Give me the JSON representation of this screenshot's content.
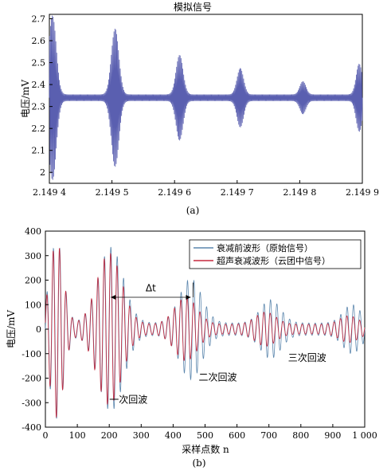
{
  "chart_data": [
    {
      "type": "line",
      "title": "模拟信号",
      "ylabel": "电压/mV",
      "xlabel": "",
      "caption": "(a)",
      "xlim": [
        2.1494,
        2.1499
      ],
      "ylim": [
        1.95,
        2.72
      ],
      "x_tick_labels": [
        "2.149 4",
        "2.149 5",
        "2.149 6",
        "2.149 7",
        "2.149 8",
        "2.149 9"
      ],
      "x_ticks": [
        2.1494,
        2.1495,
        2.1496,
        2.1497,
        2.1498,
        2.1499
      ],
      "y_tick_labels": [
        "2",
        "2.1",
        "2.2",
        "2.3",
        "2.4",
        "2.5",
        "2.6",
        "2.7"
      ],
      "y_ticks": [
        2.0,
        2.1,
        2.2,
        2.3,
        2.4,
        2.5,
        2.6,
        2.7
      ],
      "baseline": 2.34,
      "series": [
        {
          "color": "#5a5fb0",
          "bursts": [
            {
              "center": 2.149405,
              "width": 8.5e-06,
              "amplitude": 0.36
            },
            {
              "center": 2.149505,
              "width": 8.5e-06,
              "amplitude": 0.3
            },
            {
              "center": 2.149608,
              "width": 8e-06,
              "amplitude": 0.18
            },
            {
              "center": 2.149705,
              "width": 7.5e-06,
              "amplitude": 0.12
            },
            {
              "center": 2.149805,
              "width": 7e-06,
              "amplitude": 0.06
            },
            {
              "center": 2.149895,
              "width": 7e-06,
              "amplitude": 0.14
            }
          ],
          "background_amplitude": 0.015,
          "cycles_per_x_unit": 700000
        }
      ],
      "grid": false
    },
    {
      "type": "line",
      "title": "",
      "xlabel": "采样点数 n",
      "ylabel": "电压/mV",
      "caption": "(b)",
      "xlim": [
        0,
        1000
      ],
      "ylim": [
        -400,
        400
      ],
      "x_tick_labels": [
        "0",
        "100",
        "200",
        "300",
        "400",
        "500",
        "600",
        "700",
        "800",
        "900",
        "1 000"
      ],
      "x_ticks": [
        0,
        100,
        200,
        300,
        400,
        500,
        600,
        700,
        800,
        900,
        1000
      ],
      "y_tick_labels": [
        "-400",
        "-300",
        "-200",
        "-100",
        "0",
        "100",
        "200",
        "300",
        "400"
      ],
      "y_ticks": [
        -400,
        -300,
        -200,
        -100,
        0,
        100,
        200,
        300,
        400
      ],
      "legend": {
        "placement": "top-right"
      },
      "series": [
        {
          "name": "衰减前波形（原始信号）",
          "color": "#5b86ad",
          "bursts": [
            {
              "center": 35,
              "width": 30,
              "amplitude": 340
            },
            {
              "center": 205,
              "width": 55,
              "amplitude": 310
            },
            {
              "center": 455,
              "width": 50,
              "amplitude": 180
            },
            {
              "center": 705,
              "width": 45,
              "amplitude": 95
            },
            {
              "center": 960,
              "width": 40,
              "amplitude": 75
            }
          ],
          "background_amplitude": 25,
          "period": 20
        },
        {
          "name": "超声衰减波形（云团中信号）",
          "color": "#c5283d",
          "bursts": [
            {
              "center": 35,
              "width": 30,
              "amplitude": 340
            },
            {
              "center": 200,
              "width": 55,
              "amplitude": 290
            },
            {
              "center": 440,
              "width": 50,
              "amplitude": 110
            },
            {
              "center": 690,
              "width": 45,
              "amplitude": 50
            },
            {
              "center": 950,
              "width": 40,
              "amplitude": 35
            }
          ],
          "background_amplitude": 20,
          "period": 20
        }
      ],
      "annotations": [
        {
          "text": "Δt",
          "x": 330,
          "y": 155
        },
        {
          "text": "一次回波",
          "x": 260,
          "y": -300
        },
        {
          "text": "二次回波",
          "x": 540,
          "y": -210
        },
        {
          "text": "三次回波",
          "x": 820,
          "y": -130
        }
      ],
      "delta_t_arrow": {
        "x_start": 205,
        "x_end": 455,
        "y": 130
      },
      "grid": false
    }
  ]
}
